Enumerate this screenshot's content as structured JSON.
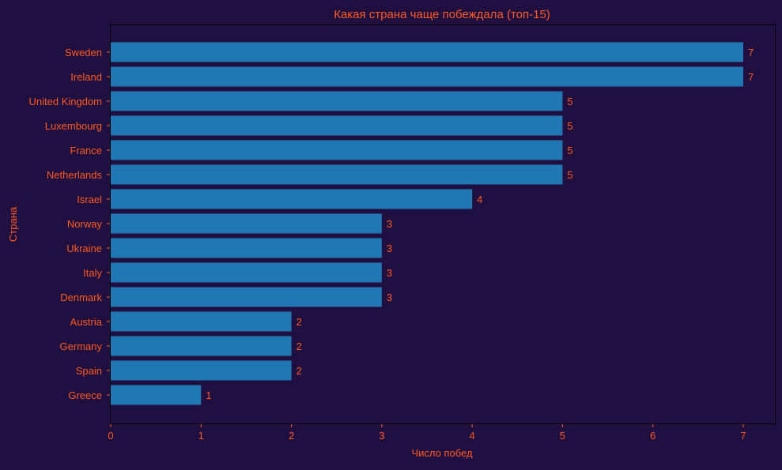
{
  "chart_data": {
    "type": "bar",
    "orientation": "horizontal",
    "title": "Какая страна чаще побеждала (топ-15)",
    "xlabel": "Число побед",
    "ylabel": "Страна",
    "categories": [
      "Sweden",
      "Ireland",
      "United Kingdom",
      "Luxembourg",
      "France",
      "Netherlands",
      "Israel",
      "Norway",
      "Ukraine",
      "Italy",
      "Denmark",
      "Austria",
      "Germany",
      "Spain",
      "Greece"
    ],
    "values": [
      7,
      7,
      5,
      5,
      5,
      5,
      4,
      3,
      3,
      3,
      3,
      2,
      2,
      2,
      1
    ],
    "xlim": [
      0,
      7.35
    ],
    "xticks": [
      0,
      1,
      2,
      3,
      4,
      5,
      6,
      7
    ],
    "grid": false,
    "colors": {
      "bar": "#1f77b4",
      "text": "#ff5a1f",
      "background": "#200f41"
    }
  }
}
